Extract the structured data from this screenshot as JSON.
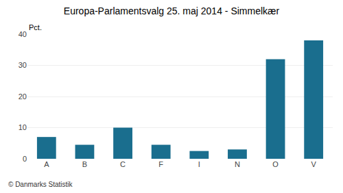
{
  "chart_data": {
    "type": "bar",
    "title": "Europa-Parlamentsvalg 25. maj 2014 - Simmelkær",
    "categories": [
      "A",
      "B",
      "C",
      "F",
      "I",
      "N",
      "O",
      "V"
    ],
    "values": [
      7.0,
      4.5,
      10.0,
      4.5,
      2.5,
      3.0,
      32.0,
      38.0
    ],
    "color": "#1a6e8e",
    "ylabel": "Pct.",
    "ylim": [
      0,
      40
    ],
    "yticks": [
      0,
      10,
      20,
      30,
      40
    ],
    "grid": true,
    "annotations": [
      "© Danmarks Statistik"
    ]
  }
}
